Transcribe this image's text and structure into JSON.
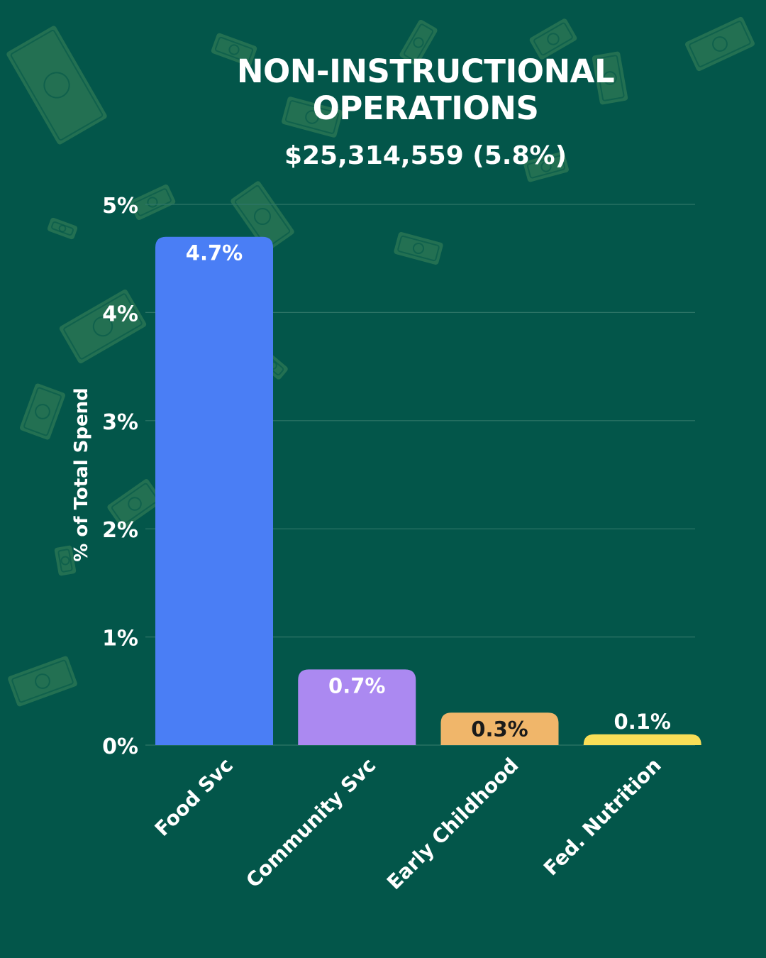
{
  "header": {
    "title": "NON-INSTRUCTIONAL OPERATIONS",
    "subtitle": "$25,314,559 (5.8%)"
  },
  "colors": {
    "background": "#03564a",
    "money_decoration": "#2f7a55",
    "gridline": "#2f7668",
    "text": "#ffffff"
  },
  "background_decoration": "money-bills-icon",
  "chart_data": {
    "type": "bar",
    "title": "NON-INSTRUCTIONAL OPERATIONS",
    "subtitle": "$25,314,559 (5.8%)",
    "xlabel": "",
    "ylabel": "% of Total Spend",
    "ylim": [
      0,
      5
    ],
    "yticks": [
      "0%",
      "1%",
      "2%",
      "3%",
      "4%",
      "5%"
    ],
    "ytick_values": [
      0,
      1,
      2,
      3,
      4,
      5
    ],
    "grid": true,
    "legend": "none",
    "categories": [
      "Food Svc",
      "Community Svc",
      "Early Childhood",
      "Fed. Nutrition"
    ],
    "values": [
      4.7,
      0.7,
      0.3,
      0.1
    ],
    "value_labels": [
      "4.7%",
      "0.7%",
      "0.3%",
      "0.1%"
    ],
    "bar_colors": [
      "#4a7ef5",
      "#ab89f1",
      "#f0b66a",
      "#f9de57"
    ],
    "label_colors": [
      "#ffffff",
      "#ffffff",
      "#1a1a1a",
      "#ffffff"
    ]
  }
}
